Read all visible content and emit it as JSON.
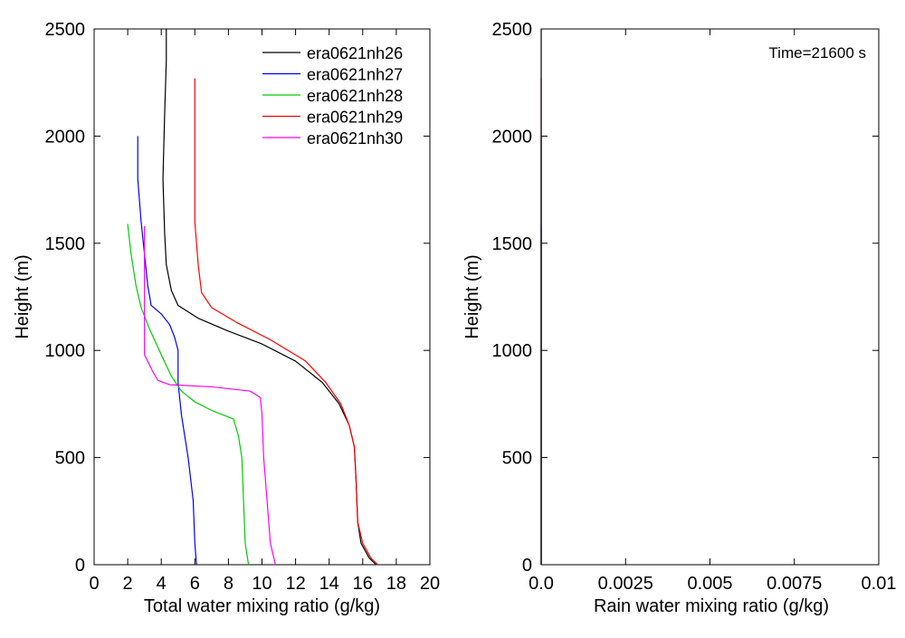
{
  "chart_data": [
    {
      "type": "line",
      "title": "",
      "xlabel": "Total water mixing ratio (g/kg)",
      "ylabel": "Height (m)",
      "xlim": [
        0,
        20
      ],
      "ylim": [
        0,
        2500
      ],
      "xticks": [
        "0",
        "2",
        "4",
        "6",
        "8",
        "10",
        "12",
        "14",
        "16",
        "18",
        "20"
      ],
      "yticks": [
        "0",
        "500",
        "1000",
        "1500",
        "2000",
        "2500"
      ],
      "legend_position": "top-right",
      "grid": false,
      "series": [
        {
          "name": "era0621nh26",
          "color": "#000000",
          "points": [
            [
              16.8,
              0
            ],
            [
              16.4,
              30
            ],
            [
              15.9,
              100
            ],
            [
              15.7,
              200
            ],
            [
              15.6,
              400
            ],
            [
              15.5,
              550
            ],
            [
              15.2,
              650
            ],
            [
              14.6,
              750
            ],
            [
              13.6,
              850
            ],
            [
              12.0,
              950
            ],
            [
              10.0,
              1030
            ],
            [
              8.0,
              1090
            ],
            [
              6.2,
              1150
            ],
            [
              5.0,
              1210
            ],
            [
              4.6,
              1280
            ],
            [
              4.3,
              1400
            ],
            [
              4.2,
              1550
            ],
            [
              4.1,
              1800
            ],
            [
              4.2,
              2100
            ],
            [
              4.3,
              2350
            ],
            [
              4.3,
              2500
            ]
          ]
        },
        {
          "name": "era0621nh27",
          "color": "#0000ff",
          "points": [
            [
              6.1,
              0
            ],
            [
              6.0,
              100
            ],
            [
              5.9,
              300
            ],
            [
              5.6,
              500
            ],
            [
              5.2,
              700
            ],
            [
              5.0,
              850
            ],
            [
              5.0,
              1000
            ],
            [
              4.8,
              1060
            ],
            [
              4.5,
              1120
            ],
            [
              4.0,
              1170
            ],
            [
              3.4,
              1210
            ],
            [
              3.2,
              1300
            ],
            [
              3.0,
              1450
            ],
            [
              2.8,
              1600
            ],
            [
              2.6,
              1800
            ],
            [
              2.6,
              2000
            ]
          ]
        },
        {
          "name": "era0621nh28",
          "color": "#00cc00",
          "points": [
            [
              9.2,
              0
            ],
            [
              9.0,
              100
            ],
            [
              8.9,
              300
            ],
            [
              8.8,
              500
            ],
            [
              8.6,
              600
            ],
            [
              8.3,
              680
            ],
            [
              7.0,
              720
            ],
            [
              6.0,
              760
            ],
            [
              5.2,
              810
            ],
            [
              4.6,
              880
            ],
            [
              4.0,
              980
            ],
            [
              3.3,
              1100
            ],
            [
              2.8,
              1200
            ],
            [
              2.5,
              1300
            ],
            [
              2.2,
              1450
            ],
            [
              2.0,
              1590
            ]
          ]
        },
        {
          "name": "era0621nh29",
          "color": "#ff0000",
          "points": [
            [
              16.9,
              0
            ],
            [
              16.5,
              30
            ],
            [
              16.0,
              100
            ],
            [
              15.7,
              200
            ],
            [
              15.6,
              400
            ],
            [
              15.5,
              550
            ],
            [
              15.2,
              650
            ],
            [
              14.7,
              750
            ],
            [
              13.8,
              850
            ],
            [
              12.6,
              950
            ],
            [
              10.5,
              1050
            ],
            [
              8.5,
              1130
            ],
            [
              7.0,
              1200
            ],
            [
              6.4,
              1270
            ],
            [
              6.2,
              1400
            ],
            [
              6.0,
              1600
            ],
            [
              6.0,
              1800
            ],
            [
              6.0,
              2100
            ],
            [
              6.0,
              2270
            ]
          ]
        },
        {
          "name": "era0621nh30",
          "color": "#ff00ff",
          "points": [
            [
              10.8,
              0
            ],
            [
              10.5,
              100
            ],
            [
              10.3,
              300
            ],
            [
              10.1,
              500
            ],
            [
              10.0,
              700
            ],
            [
              9.9,
              780
            ],
            [
              9.3,
              810
            ],
            [
              7.0,
              830
            ],
            [
              4.5,
              840
            ],
            [
              3.8,
              860
            ],
            [
              3.5,
              900
            ],
            [
              3.0,
              980
            ],
            [
              3.0,
              1100
            ],
            [
              3.0,
              1300
            ],
            [
              3.0,
              1450
            ],
            [
              3.0,
              1580
            ]
          ]
        }
      ]
    },
    {
      "type": "line",
      "title": "",
      "xlabel": "Rain water mixing ratio (g/kg)",
      "ylabel": "Height (m)",
      "xlim": [
        0,
        0.01
      ],
      "ylim": [
        0,
        2500
      ],
      "xticks": [
        "0.0",
        "0.0025",
        "0.005",
        "0.0075",
        "0.01"
      ],
      "yticks": [
        "0",
        "500",
        "1000",
        "1500",
        "2000",
        "2500"
      ],
      "annotation": "Time=21600 s",
      "grid": false,
      "series": [
        {
          "color": "#ff00ff",
          "points": [
            [
              0,
              0
            ],
            [
              0,
              1580
            ]
          ]
        },
        {
          "color": "#ff0000",
          "points": [
            [
              0,
              0
            ],
            [
              0,
              2270
            ]
          ]
        },
        {
          "color": "#0000ff",
          "points": [
            [
              0,
              0
            ],
            [
              0,
              2000
            ]
          ]
        },
        {
          "color": "#00cc00",
          "points": [
            [
              0,
              0
            ],
            [
              0,
              1590
            ]
          ]
        },
        {
          "color": "#000000",
          "points": [
            [
              0,
              0
            ],
            [
              0,
              2500
            ]
          ]
        }
      ]
    }
  ]
}
